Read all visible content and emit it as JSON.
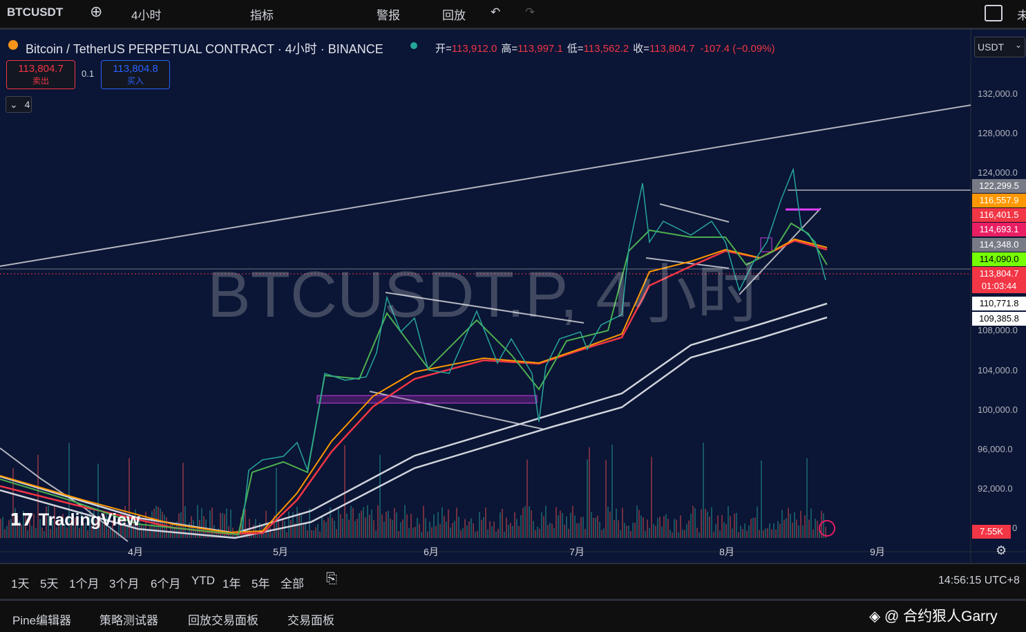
{
  "toolbar": {
    "symbol": "BTCUSDT",
    "interval": "4小时",
    "indicators": "指标",
    "alerts": "警报",
    "replay": "回放",
    "cut_off": "未"
  },
  "header": {
    "title": "Bitcoin / TetherUS PERPETUAL CONTRACT · 4小时 · BINANCE",
    "ohlc": [
      {
        "label": "开=",
        "value": "113,912.0"
      },
      {
        "label": "高=",
        "value": "113,997.1"
      },
      {
        "label": "低=",
        "value": "113,562.2"
      },
      {
        "label": "收=",
        "value": "113,804.7"
      }
    ],
    "change": "-107.4 (−0.09%)",
    "currency": "USDT"
  },
  "trade": {
    "sell_price": "113,804.7",
    "sell_label": "卖出",
    "spread": "0.1",
    "buy_price": "113,804.8",
    "buy_label": "买入"
  },
  "indicator_count": "4",
  "watermark": "BTCUSDT.P, 4小时",
  "logo": "TradingView",
  "price_axis": {
    "ticks": [
      "132,000.0",
      "128,000.0",
      "124,000.0",
      "108,000.0",
      "104,000.0",
      "100,000.0",
      "96,000.0",
      "92,000.0",
      "0"
    ],
    "labels": [
      {
        "text": "122,299.5",
        "color": "#787b86"
      },
      {
        "text": "116,557.9",
        "color": "#ff9800"
      },
      {
        "text": "116,401.5",
        "color": "#f23645"
      },
      {
        "text": "114,693.1",
        "color": "#e91e63"
      },
      {
        "text": "114,348.0",
        "color": "#787b86"
      },
      {
        "text": "114,090.0",
        "color": "#76ff03"
      },
      {
        "text": "113,804.7",
        "color": "#f23645"
      },
      {
        "text": "110,771.8",
        "color": "#ffffff"
      },
      {
        "text": "109,385.8",
        "color": "#ffffff"
      }
    ],
    "countdown": "01:03:44",
    "volume": "7.55K"
  },
  "time_axis": [
    "4月",
    "5月",
    "6月",
    "7月",
    "8月",
    "9月"
  ],
  "range_bar": {
    "ranges": [
      "1天",
      "5天",
      "1个月",
      "3个月",
      "6个月",
      "YTD",
      "1年",
      "5年",
      "全部"
    ],
    "clock": "14:56:15 UTC+8"
  },
  "bottom_tabs": [
    "Pine编辑器",
    "策略测试器",
    "回放交易面板",
    "交易面板"
  ],
  "credit": "@ 合约狠人Garry"
}
